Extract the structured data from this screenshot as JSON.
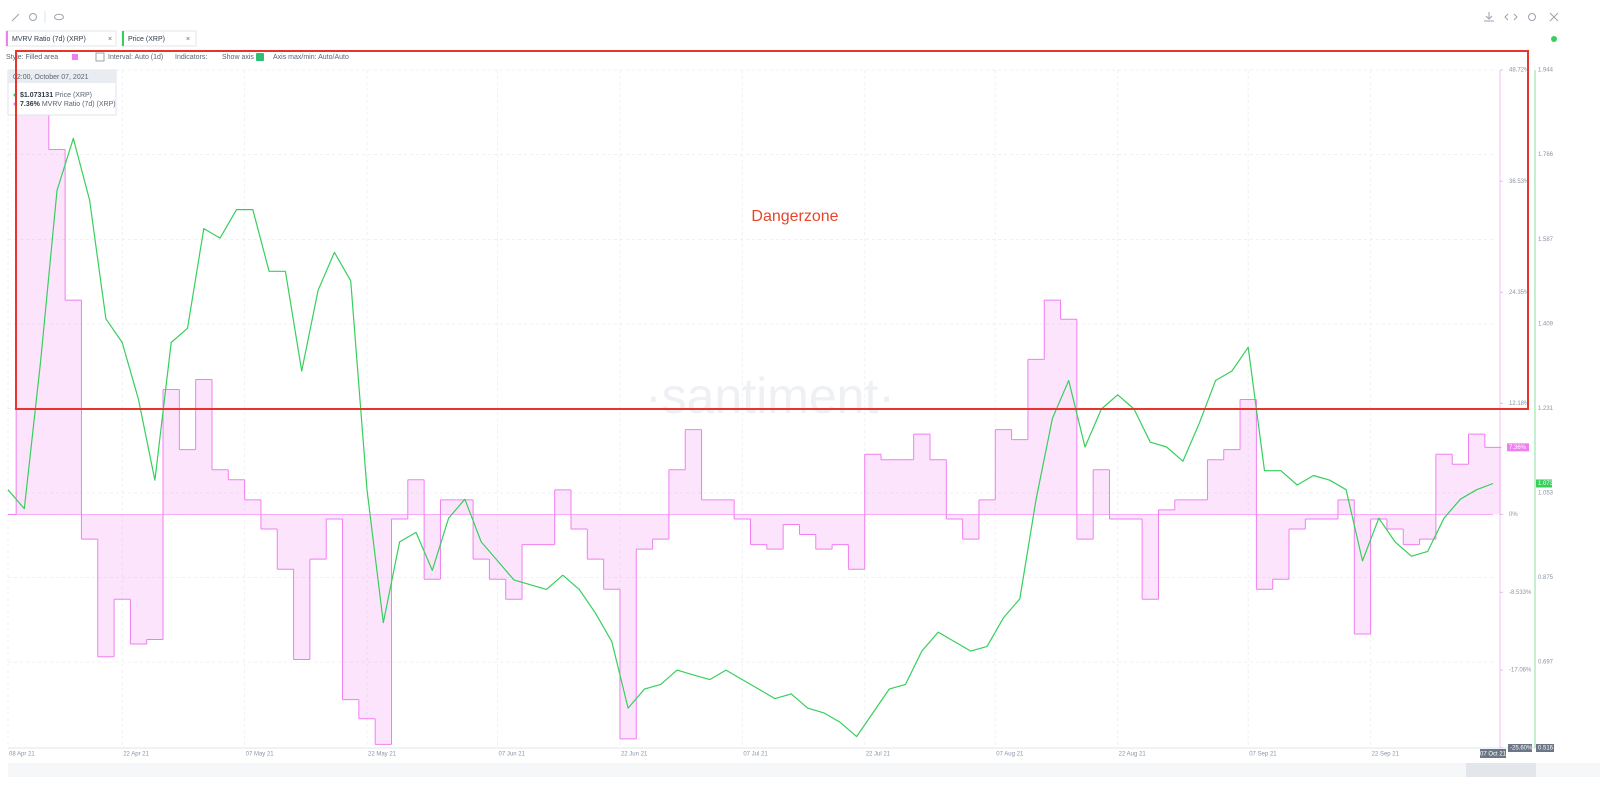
{
  "ui": {
    "settings": [
      "Style: Filled area",
      "Interval: Auto (1d)",
      "Indicators:",
      "Show axis",
      "Axis max/min: Auto/Auto"
    ],
    "watermark": "·santiment·",
    "annotation": "Dangerzone",
    "tooltip": {
      "date": "02:00, October 07, 2021",
      "price": "$1.073131",
      "price_name": "Price (XRP)",
      "mvrv": "7.36%",
      "mvrv_name": "MVRV Ratio (7d) (XRP)"
    },
    "current_tags": {
      "mvrv": "7.36%",
      "price": "1.073"
    }
  },
  "chart_data": {
    "type": "combo",
    "x": [
      "2021-04-08",
      "2021-04-10",
      "2021-04-12",
      "2021-04-14",
      "2021-04-16",
      "2021-04-18",
      "2021-04-20",
      "2021-04-22",
      "2021-04-24",
      "2021-04-26",
      "2021-04-28",
      "2021-04-30",
      "2021-05-02",
      "2021-05-04",
      "2021-05-06",
      "2021-05-08",
      "2021-05-10",
      "2021-05-12",
      "2021-05-14",
      "2021-05-16",
      "2021-05-18",
      "2021-05-20",
      "2021-05-22",
      "2021-05-24",
      "2021-05-26",
      "2021-05-28",
      "2021-05-30",
      "2021-06-01",
      "2021-06-03",
      "2021-06-05",
      "2021-06-07",
      "2021-06-09",
      "2021-06-11",
      "2021-06-13",
      "2021-06-15",
      "2021-06-17",
      "2021-06-19",
      "2021-06-21",
      "2021-06-23",
      "2021-06-25",
      "2021-06-27",
      "2021-06-29",
      "2021-07-01",
      "2021-07-03",
      "2021-07-05",
      "2021-07-07",
      "2021-07-09",
      "2021-07-11",
      "2021-07-13",
      "2021-07-15",
      "2021-07-17",
      "2021-07-19",
      "2021-07-21",
      "2021-07-23",
      "2021-07-25",
      "2021-07-27",
      "2021-07-29",
      "2021-07-31",
      "2021-08-02",
      "2021-08-04",
      "2021-08-06",
      "2021-08-08",
      "2021-08-10",
      "2021-08-12",
      "2021-08-14",
      "2021-08-16",
      "2021-08-18",
      "2021-08-20",
      "2021-08-22",
      "2021-08-24",
      "2021-08-26",
      "2021-08-28",
      "2021-08-30",
      "2021-09-01",
      "2021-09-03",
      "2021-09-05",
      "2021-09-07",
      "2021-09-09",
      "2021-09-11",
      "2021-09-13",
      "2021-09-15",
      "2021-09-17",
      "2021-09-19",
      "2021-09-21",
      "2021-09-23",
      "2021-09-25",
      "2021-09-27",
      "2021-09-29",
      "2021-10-01",
      "2021-10-03",
      "2021-10-05",
      "2021-10-07"
    ],
    "series": [
      {
        "name": "MVRV Ratio (7d) (XRP)",
        "type": "area",
        "color": "#f07ef0",
        "values": [
          0,
          44.3,
          45.4,
          40,
          23.5,
          -2.7,
          -15.6,
          -9.3,
          -14.2,
          -13.7,
          13.7,
          7.1,
          14.8,
          4.9,
          3.8,
          1.6,
          -1.6,
          -6,
          -15.9,
          -4.9,
          -0.5,
          -20.3,
          -22.4,
          -25.2,
          -0.5,
          3.8,
          -7.1,
          1.6,
          1.6,
          -4.9,
          -7.1,
          -9.3,
          -3.3,
          -3.3,
          2.7,
          -1.6,
          -4.9,
          -8.2,
          -24.6,
          -3.8,
          -2.7,
          4.9,
          9.3,
          1.6,
          1.6,
          -0.5,
          -3.3,
          -3.8,
          -1.1,
          -2.2,
          -3.8,
          -3.3,
          -6,
          6.6,
          6,
          6,
          8.8,
          6,
          -0.5,
          -2.7,
          1.6,
          9.3,
          8.2,
          17,
          23.5,
          21.4,
          -2.7,
          4.9,
          -0.5,
          -0.5,
          -9.3,
          0.5,
          1.6,
          1.6,
          6,
          7.1,
          12.6,
          -8.2,
          -7.1,
          -1.6,
          -0.5,
          -0.5,
          1.6,
          -13.1,
          -0.5,
          -1.6,
          -3.3,
          -2.7,
          6.6,
          5.5,
          8.8,
          7.36
        ]
      },
      {
        "name": "Price (XRP)",
        "type": "line",
        "axis": "y2",
        "color": "#37cf5c",
        "values": [
          1.06,
          1.02,
          1.33,
          1.69,
          1.8,
          1.67,
          1.42,
          1.37,
          1.25,
          1.08,
          1.37,
          1.4,
          1.61,
          1.59,
          1.65,
          1.65,
          1.52,
          1.52,
          1.31,
          1.48,
          1.56,
          1.5,
          1.06,
          0.78,
          0.95,
          0.97,
          0.89,
          1,
          1.04,
          0.95,
          0.91,
          0.87,
          0.86,
          0.85,
          0.88,
          0.85,
          0.8,
          0.74,
          0.6,
          0.64,
          0.65,
          0.68,
          0.67,
          0.66,
          0.68,
          0.66,
          0.64,
          0.62,
          0.63,
          0.6,
          0.59,
          0.57,
          0.54,
          0.59,
          0.64,
          0.65,
          0.72,
          0.76,
          0.74,
          0.72,
          0.73,
          0.79,
          0.83,
          1.04,
          1.21,
          1.29,
          1.15,
          1.23,
          1.26,
          1.23,
          1.16,
          1.15,
          1.12,
          1.2,
          1.29,
          1.31,
          1.36,
          1.1,
          1.1,
          1.07,
          1.09,
          1.08,
          1.06,
          0.91,
          1,
          0.95,
          0.92,
          0.93,
          1,
          1.04,
          1.06,
          1.073131
        ]
      }
    ],
    "xticks": [
      {
        "value": "2021-04-08",
        "label": "08 Apr 21"
      },
      {
        "value": "2021-04-22",
        "label": "22 Apr 21"
      },
      {
        "value": "2021-05-07",
        "label": "07 May 21"
      },
      {
        "value": "2021-05-22",
        "label": "22 May 21"
      },
      {
        "value": "2021-06-07",
        "label": "07 Jun 21"
      },
      {
        "value": "2021-06-22",
        "label": "22 Jun 21"
      },
      {
        "value": "2021-07-07",
        "label": "07 Jul 21"
      },
      {
        "value": "2021-07-22",
        "label": "22 Jul 21"
      },
      {
        "value": "2021-08-07",
        "label": "07 Aug 21"
      },
      {
        "value": "2021-08-22",
        "label": "22 Aug 21"
      },
      {
        "value": "2021-09-07",
        "label": "07 Sep 21"
      },
      {
        "value": "2021-09-22",
        "label": "22 Sep 21"
      },
      {
        "value": "2021-10-07",
        "label": "07 Oct 21"
      }
    ],
    "ylim": [
      -25.6,
      48.72
    ],
    "yticks": [
      {
        "value": 48.72,
        "label": "48.72%"
      },
      {
        "value": 36.53,
        "label": "36.53%"
      },
      {
        "value": 24.35,
        "label": "24.35%"
      },
      {
        "value": 12.18,
        "label": "12.18%"
      },
      {
        "value": 0,
        "label": "0%"
      },
      {
        "value": -8.533,
        "label": "-8.533%"
      },
      {
        "value": -17.06,
        "label": "-17.06%"
      },
      {
        "value": -25.6,
        "label": "-25.60%"
      }
    ],
    "y2lim": [
      0.516,
      1.944
    ],
    "y2ticks": [
      1.944,
      1.766,
      1.587,
      1.409,
      1.231,
      1.053,
      0.875,
      0.697,
      0.516
    ],
    "grid": true
  }
}
